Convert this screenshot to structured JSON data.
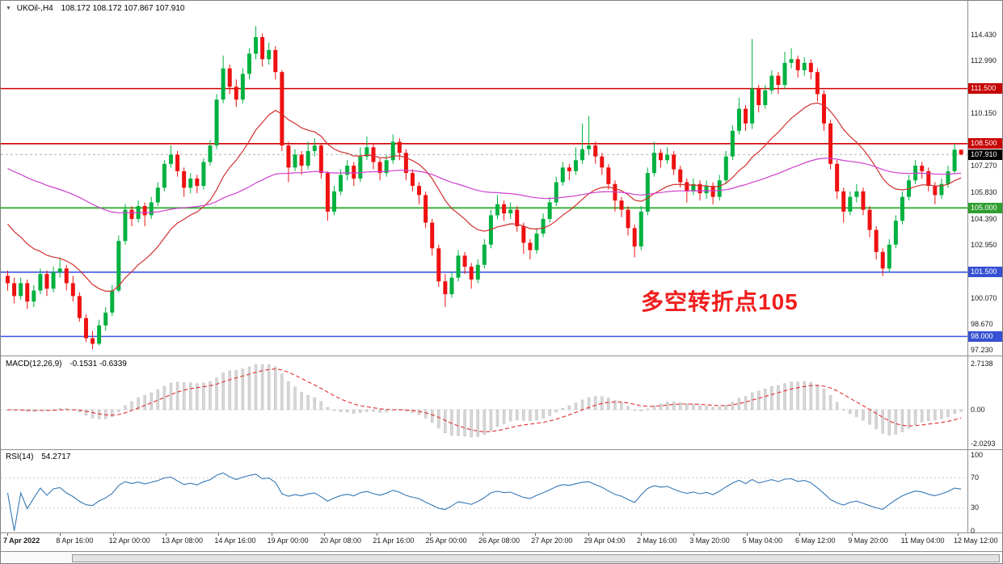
{
  "header": {
    "collapse_icon": "▼",
    "symbol": "UKOil-,H4",
    "ohlc": "108.172 108.172 107.867 107.910"
  },
  "annotation": {
    "text": "多空转折点105",
    "color": "#f01e1e"
  },
  "chart_data": {
    "type": "candlestick",
    "symbol": "UKOil-",
    "timeframe": "H4",
    "ylim": [
      96.96,
      116.28
    ],
    "up_color": "#00b140",
    "down_color": "#ee1111",
    "candles": [
      [
        101.3,
        101.6,
        100.5,
        100.9
      ],
      [
        100.9,
        101.2,
        99.8,
        100.2
      ],
      [
        100.2,
        101.2,
        100.0,
        100.9
      ],
      [
        100.9,
        101.1,
        99.5,
        99.9
      ],
      [
        99.9,
        100.8,
        99.6,
        100.5
      ],
      [
        100.5,
        101.7,
        100.3,
        101.4
      ],
      [
        101.4,
        101.6,
        100.2,
        100.6
      ],
      [
        100.6,
        101.8,
        100.4,
        101.5
      ],
      [
        101.5,
        102.3,
        101.2,
        101.7
      ],
      [
        101.7,
        101.9,
        100.5,
        100.9
      ],
      [
        100.9,
        101.3,
        99.9,
        100.2
      ],
      [
        100.2,
        100.4,
        98.8,
        99.0
      ],
      [
        99.0,
        99.2,
        97.7,
        97.9
      ],
      [
        97.9,
        98.3,
        97.3,
        97.6
      ],
      [
        97.6,
        98.9,
        97.5,
        98.6
      ],
      [
        98.6,
        99.6,
        98.3,
        99.3
      ],
      [
        99.3,
        100.8,
        99.1,
        100.5
      ],
      [
        100.5,
        103.5,
        100.4,
        103.2
      ],
      [
        103.2,
        105.2,
        103.0,
        104.9
      ],
      [
        104.9,
        105.1,
        104.0,
        104.4
      ],
      [
        104.4,
        105.4,
        104.2,
        105.1
      ],
      [
        105.1,
        105.3,
        104.0,
        104.6
      ],
      [
        104.6,
        105.6,
        104.4,
        105.3
      ],
      [
        105.3,
        106.4,
        105.1,
        106.1
      ],
      [
        106.1,
        107.6,
        105.9,
        107.4
      ],
      [
        107.4,
        108.4,
        107.2,
        107.9
      ],
      [
        107.9,
        108.1,
        106.7,
        107.0
      ],
      [
        107.0,
        107.2,
        105.6,
        106.1
      ],
      [
        106.1,
        106.9,
        105.8,
        106.6
      ],
      [
        106.6,
        106.8,
        105.8,
        106.2
      ],
      [
        106.2,
        107.7,
        106.0,
        107.5
      ],
      [
        107.5,
        108.7,
        107.3,
        108.4
      ],
      [
        108.4,
        111.2,
        108.2,
        110.9
      ],
      [
        110.9,
        113.3,
        110.7,
        112.6
      ],
      [
        112.6,
        112.8,
        111.2,
        111.6
      ],
      [
        111.6,
        112.0,
        110.5,
        110.9
      ],
      [
        110.9,
        112.6,
        110.7,
        112.3
      ],
      [
        112.3,
        113.7,
        112.0,
        113.4
      ],
      [
        113.4,
        114.9,
        113.1,
        114.3
      ],
      [
        114.3,
        114.5,
        112.7,
        113.1
      ],
      [
        113.1,
        114.0,
        112.8,
        113.6
      ],
      [
        113.6,
        113.8,
        112.0,
        112.4
      ],
      [
        112.4,
        112.5,
        108.1,
        108.4
      ],
      [
        108.4,
        108.6,
        106.4,
        107.2
      ],
      [
        107.2,
        108.2,
        107.0,
        107.9
      ],
      [
        107.9,
        108.1,
        106.8,
        107.3
      ],
      [
        107.3,
        108.6,
        107.1,
        108.1
      ],
      [
        108.1,
        108.8,
        107.8,
        108.4
      ],
      [
        108.4,
        108.5,
        106.6,
        106.9
      ],
      [
        106.9,
        107.0,
        104.3,
        104.8
      ],
      [
        104.8,
        106.2,
        104.6,
        105.9
      ],
      [
        105.9,
        107.1,
        105.7,
        106.8
      ],
      [
        106.8,
        107.6,
        106.5,
        107.3
      ],
      [
        107.3,
        107.5,
        106.2,
        106.6
      ],
      [
        106.6,
        108.3,
        106.4,
        107.8
      ],
      [
        107.8,
        108.9,
        107.6,
        108.3
      ],
      [
        108.3,
        108.5,
        107.1,
        107.5
      ],
      [
        107.5,
        107.7,
        106.5,
        106.9
      ],
      [
        106.9,
        107.9,
        106.7,
        107.6
      ],
      [
        107.6,
        109.0,
        107.4,
        108.6
      ],
      [
        108.6,
        108.8,
        107.6,
        108.0
      ],
      [
        108.0,
        108.2,
        106.5,
        106.9
      ],
      [
        106.9,
        107.1,
        105.9,
        106.2
      ],
      [
        106.2,
        106.4,
        105.2,
        105.7
      ],
      [
        105.7,
        105.9,
        103.9,
        104.2
      ],
      [
        104.2,
        104.4,
        102.4,
        102.8
      ],
      [
        102.8,
        103.0,
        100.7,
        101.0
      ],
      [
        101.0,
        101.4,
        99.6,
        100.3
      ],
      [
        100.3,
        101.5,
        100.1,
        101.2
      ],
      [
        101.2,
        102.7,
        101.0,
        102.4
      ],
      [
        102.4,
        102.6,
        101.4,
        101.8
      ],
      [
        101.8,
        102.0,
        100.6,
        101.1
      ],
      [
        101.1,
        102.2,
        100.9,
        101.9
      ],
      [
        101.9,
        103.3,
        101.7,
        103.0
      ],
      [
        103.0,
        104.9,
        102.8,
        104.6
      ],
      [
        104.6,
        105.7,
        104.4,
        105.2
      ],
      [
        105.2,
        105.4,
        104.3,
        104.7
      ],
      [
        104.7,
        105.3,
        104.4,
        104.9
      ],
      [
        104.9,
        105.1,
        103.7,
        104.0
      ],
      [
        104.0,
        104.2,
        102.5,
        103.1
      ],
      [
        103.1,
        103.3,
        102.2,
        102.7
      ],
      [
        102.7,
        103.9,
        102.5,
        103.6
      ],
      [
        103.6,
        104.7,
        103.4,
        104.4
      ],
      [
        104.4,
        105.6,
        104.2,
        105.3
      ],
      [
        105.3,
        106.7,
        105.1,
        106.4
      ],
      [
        106.4,
        107.5,
        106.2,
        107.2
      ],
      [
        107.2,
        107.4,
        106.5,
        107.0
      ],
      [
        107.0,
        108.3,
        106.8,
        107.6
      ],
      [
        107.6,
        109.6,
        107.4,
        108.2
      ],
      [
        108.2,
        110.0,
        107.9,
        108.4
      ],
      [
        108.4,
        108.6,
        107.4,
        107.8
      ],
      [
        107.8,
        108.0,
        106.8,
        107.2
      ],
      [
        107.2,
        107.4,
        106.0,
        106.3
      ],
      [
        106.3,
        106.5,
        104.8,
        105.4
      ],
      [
        105.4,
        105.6,
        104.5,
        104.9
      ],
      [
        104.9,
        105.1,
        103.5,
        103.9
      ],
      [
        103.9,
        104.1,
        102.3,
        102.9
      ],
      [
        102.9,
        105.1,
        102.7,
        104.8
      ],
      [
        104.8,
        107.2,
        104.6,
        106.9
      ],
      [
        106.9,
        108.6,
        106.7,
        108.0
      ],
      [
        108.0,
        108.2,
        107.2,
        107.6
      ],
      [
        107.6,
        108.3,
        107.4,
        107.9
      ],
      [
        107.9,
        108.1,
        106.8,
        107.1
      ],
      [
        107.1,
        107.3,
        106.1,
        106.4
      ],
      [
        106.4,
        106.6,
        105.3,
        105.9
      ],
      [
        105.9,
        106.6,
        105.7,
        106.3
      ],
      [
        106.3,
        106.5,
        105.4,
        105.8
      ],
      [
        105.8,
        106.5,
        105.5,
        106.2
      ],
      [
        106.2,
        106.4,
        105.2,
        105.6
      ],
      [
        105.6,
        106.8,
        105.4,
        106.5
      ],
      [
        106.5,
        108.1,
        106.3,
        107.8
      ],
      [
        107.8,
        109.5,
        107.6,
        109.2
      ],
      [
        109.2,
        111.0,
        109.0,
        110.4
      ],
      [
        110.4,
        110.6,
        109.2,
        109.6
      ],
      [
        109.6,
        114.2,
        109.3,
        111.5
      ],
      [
        111.5,
        111.7,
        110.2,
        110.6
      ],
      [
        110.6,
        111.7,
        110.4,
        111.4
      ],
      [
        111.4,
        112.5,
        111.2,
        112.2
      ],
      [
        112.2,
        112.4,
        111.2,
        111.7
      ],
      [
        111.7,
        113.5,
        111.5,
        112.9
      ],
      [
        112.9,
        113.7,
        112.6,
        113.1
      ],
      [
        113.1,
        113.3,
        112.1,
        112.5
      ],
      [
        112.5,
        113.2,
        112.2,
        112.9
      ],
      [
        112.9,
        113.1,
        112.0,
        112.4
      ],
      [
        112.4,
        112.6,
        110.8,
        111.2
      ],
      [
        111.2,
        111.4,
        109.2,
        109.6
      ],
      [
        109.6,
        109.8,
        107.1,
        107.4
      ],
      [
        107.4,
        107.6,
        105.5,
        105.9
      ],
      [
        105.9,
        106.1,
        104.2,
        104.8
      ],
      [
        104.8,
        105.9,
        104.6,
        105.6
      ],
      [
        105.6,
        106.3,
        105.3,
        105.9
      ],
      [
        105.9,
        106.1,
        104.6,
        104.9
      ],
      [
        104.9,
        105.1,
        103.4,
        103.8
      ],
      [
        103.8,
        104.0,
        102.2,
        102.6
      ],
      [
        102.6,
        102.8,
        101.3,
        101.7
      ],
      [
        101.7,
        103.3,
        101.5,
        103.0
      ],
      [
        103.0,
        104.6,
        102.8,
        104.3
      ],
      [
        104.3,
        105.9,
        104.1,
        105.6
      ],
      [
        105.6,
        106.8,
        105.4,
        106.5
      ],
      [
        106.5,
        107.6,
        106.3,
        107.3
      ],
      [
        107.3,
        107.5,
        106.6,
        107.0
      ],
      [
        107.0,
        107.2,
        105.9,
        106.2
      ],
      [
        106.2,
        106.4,
        105.2,
        105.7
      ],
      [
        105.7,
        106.6,
        105.5,
        106.3
      ],
      [
        106.3,
        107.3,
        106.1,
        107.0
      ],
      [
        107.0,
        108.5,
        106.9,
        108.17
      ],
      [
        108.17,
        108.17,
        107.87,
        107.91
      ]
    ],
    "x_axis_labels": [
      "7 Apr 2022",
      "8 Apr 16:00",
      "12 Apr 00:00",
      "13 Apr 08:00",
      "14 Apr 16:00",
      "19 Apr 00:00",
      "20 Apr 08:00",
      "21 Apr 16:00",
      "25 Apr 00:00",
      "26 Apr 08:00",
      "27 Apr 20:00",
      "29 Apr 04:00",
      "2 May 16:00",
      "3 May 20:00",
      "5 May 04:00",
      "6 May 12:00",
      "9 May 20:00",
      "11 May 04:00",
      "12 May 12:00"
    ],
    "y_axis_labels": [
      {
        "text": "114.430",
        "value": 114.43
      },
      {
        "text": "112.990",
        "value": 112.99
      },
      {
        "text": "110.150",
        "value": 110.15
      },
      {
        "text": "107.270",
        "value": 107.27
      },
      {
        "text": "105.830",
        "value": 105.83
      },
      {
        "text": "104.390",
        "value": 104.39
      },
      {
        "text": "102.950",
        "value": 102.95
      },
      {
        "text": "100.070",
        "value": 100.07
      },
      {
        "text": "98.670",
        "value": 98.67
      },
      {
        "text": "97.230",
        "value": 97.23
      }
    ],
    "levels": [
      {
        "label": "111.500",
        "value": 111.5,
        "line_color": "#d40000",
        "badge_color": "#c60000",
        "width": 1.6
      },
      {
        "label": "108.500",
        "value": 108.5,
        "line_color": "#d40000",
        "badge_color": "#c60000",
        "width": 1.6
      },
      {
        "label": "105.000",
        "value": 105.0,
        "line_color": "#35ad35",
        "badge_color": "#2f9e2f",
        "width": 1.8
      },
      {
        "label": "101.500",
        "value": 101.5,
        "line_color": "#3b55e6",
        "badge_color": "#3550d2",
        "width": 1.6
      },
      {
        "label": "98.000",
        "value": 98.0,
        "line_color": "#3b55e6",
        "badge_color": "#3550d2",
        "width": 1.6
      }
    ],
    "current_price": {
      "label": "107.910",
      "value": 107.91,
      "badge_color": "#000000",
      "line_color": "#b0b0b0"
    },
    "moving_averages": [
      {
        "name": "ma-fast-red",
        "period": 18,
        "seed": 104.5,
        "color": "#d23030",
        "width": 1.2
      },
      {
        "name": "ma-slow-magenta",
        "period": 80,
        "seed": 107.3,
        "color": "#cf3fcf",
        "width": 1.2
      }
    ],
    "indicators": {
      "macd": {
        "title": "MACD(12,26,9)",
        "values_text": "-0.1531 -0.6339",
        "fast": 12,
        "slow": 26,
        "signal": 9,
        "axis_labels": [
          {
            "text": "2.7138",
            "value": 2.7138
          },
          {
            "text": "0.00",
            "value": 0
          },
          {
            "text": "-2.0293",
            "value": -2.0293
          }
        ],
        "histogram_color": "#d6d6d6",
        "histogram_edge": "#bdbdbd",
        "signal_color": "#e03030"
      },
      "rsi": {
        "title": "RSI(14)",
        "value_text": "54.2717",
        "period": 14,
        "axis_labels": [
          {
            "text": "100",
            "value": 100
          },
          {
            "text": "70",
            "value": 70
          },
          {
            "text": "30",
            "value": 30
          },
          {
            "text": "0",
            "value": 0
          }
        ],
        "line_color": "#3579b5",
        "levels": [
          70,
          30
        ]
      }
    }
  }
}
